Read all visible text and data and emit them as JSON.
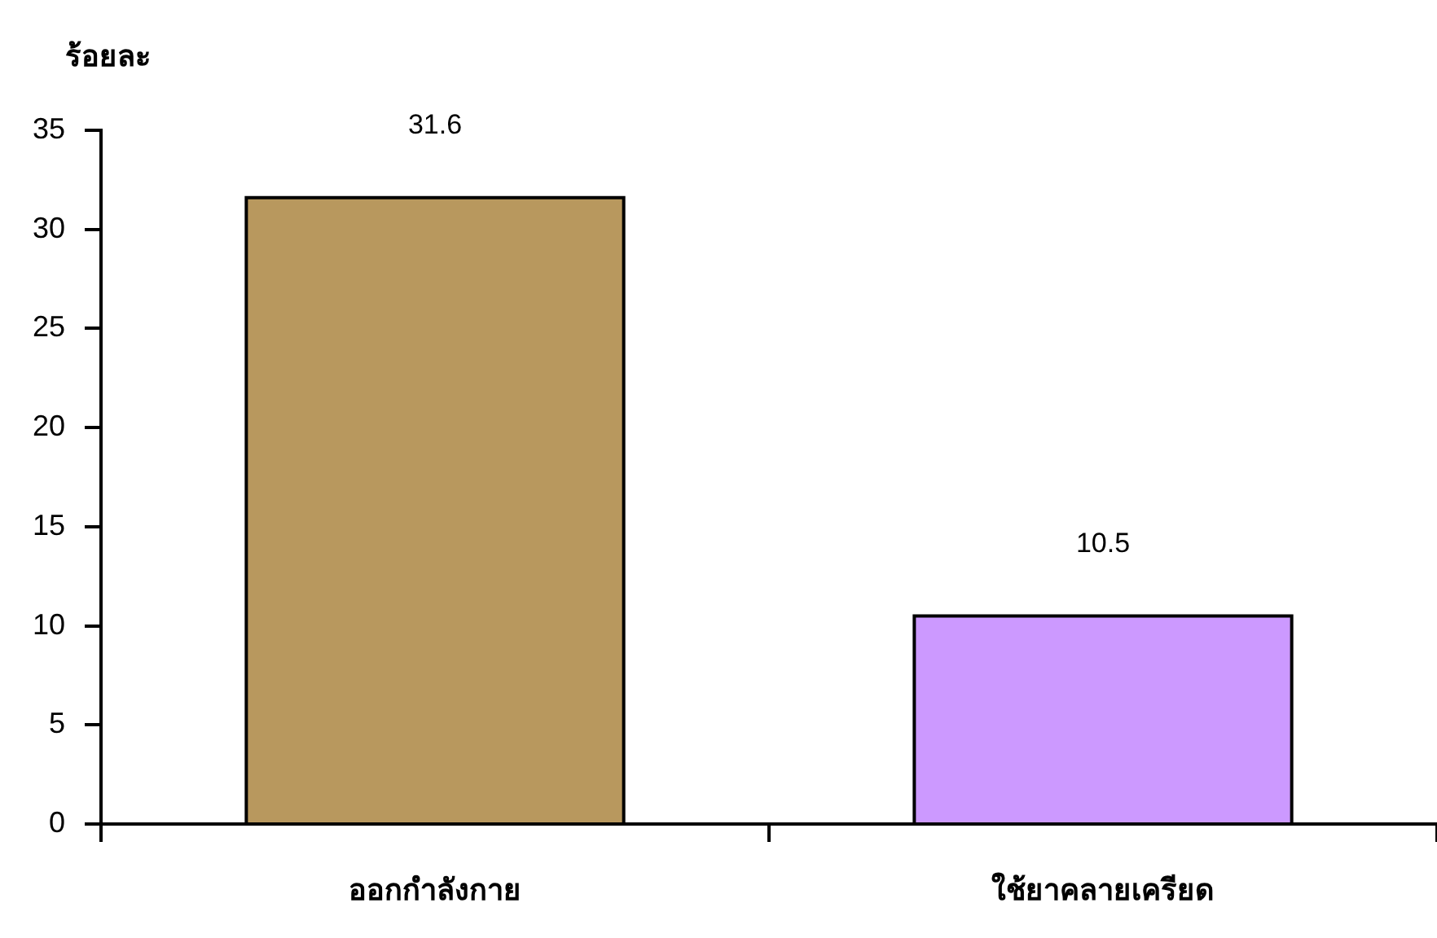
{
  "chart_data": {
    "type": "bar",
    "ylabel": "ร้อยละ",
    "categories": [
      "ออกกำลังกาย",
      "ใช้ยาคลายเครียด"
    ],
    "values": [
      31.6,
      10.5
    ],
    "colors": [
      "#b8985e",
      "#cc99ff"
    ],
    "ylim": [
      0,
      35
    ],
    "yticks": [
      0,
      5,
      10,
      15,
      20,
      25,
      30,
      35
    ],
    "data_labels": true
  }
}
